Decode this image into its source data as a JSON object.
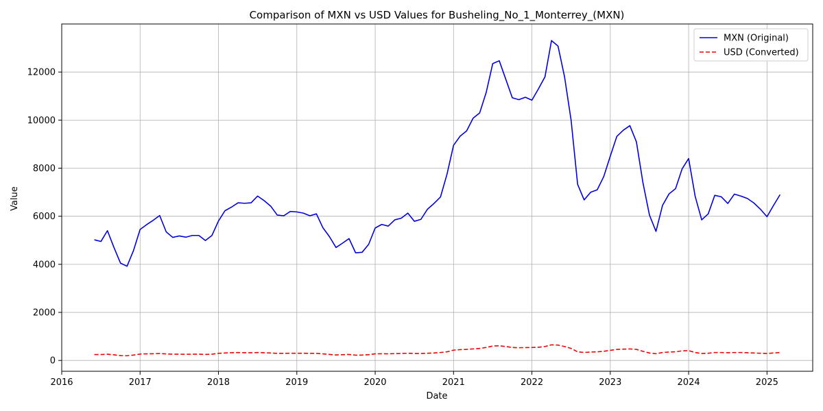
{
  "chart_data": {
    "type": "line",
    "title": "Comparison of MXN vs USD Values for Busheling_No_1_Monterrey_(MXN)",
    "xlabel": "Date",
    "ylabel": "Value",
    "xlim": [
      "2016-01-01",
      "2025-08-01"
    ],
    "ylim": [
      -450,
      14000
    ],
    "x_ticks": [
      "2016",
      "2017",
      "2018",
      "2019",
      "2020",
      "2021",
      "2022",
      "2023",
      "2024",
      "2025"
    ],
    "y_ticks": [
      0,
      2000,
      4000,
      6000,
      8000,
      10000,
      12000
    ],
    "grid": true,
    "legend_position": "top-right",
    "x": [
      "2016-06",
      "2016-07",
      "2016-08",
      "2016-09",
      "2016-10",
      "2016-11",
      "2016-12",
      "2017-01",
      "2017-02",
      "2017-03",
      "2017-04",
      "2017-05",
      "2017-06",
      "2017-07",
      "2017-08",
      "2017-09",
      "2017-10",
      "2017-11",
      "2017-12",
      "2018-01",
      "2018-02",
      "2018-03",
      "2018-04",
      "2018-05",
      "2018-06",
      "2018-07",
      "2018-08",
      "2018-09",
      "2018-10",
      "2018-11",
      "2018-12",
      "2019-01",
      "2019-02",
      "2019-03",
      "2019-04",
      "2019-05",
      "2019-06",
      "2019-07",
      "2019-08",
      "2019-09",
      "2019-10",
      "2019-11",
      "2019-12",
      "2020-01",
      "2020-02",
      "2020-03",
      "2020-04",
      "2020-05",
      "2020-06",
      "2020-07",
      "2020-08",
      "2020-09",
      "2020-10",
      "2020-11",
      "2020-12",
      "2021-01",
      "2021-02",
      "2021-03",
      "2021-04",
      "2021-05",
      "2021-06",
      "2021-07",
      "2021-08",
      "2021-09",
      "2021-10",
      "2021-11",
      "2021-12",
      "2022-01",
      "2022-02",
      "2022-03",
      "2022-04",
      "2022-05",
      "2022-06",
      "2022-07",
      "2022-08",
      "2022-09",
      "2022-10",
      "2022-11",
      "2022-12",
      "2023-01",
      "2023-02",
      "2023-03",
      "2023-04",
      "2023-05",
      "2023-06",
      "2023-07",
      "2023-08",
      "2023-09",
      "2023-10",
      "2023-11",
      "2023-12",
      "2024-01",
      "2024-02",
      "2024-03",
      "2024-04",
      "2024-05",
      "2024-06",
      "2024-07",
      "2024-08",
      "2024-09",
      "2024-10",
      "2024-11",
      "2024-12",
      "2025-01",
      "2025-02",
      "2025-03"
    ],
    "series": [
      {
        "name": "MXN (Original)",
        "color": "#0000dd",
        "style": "solid",
        "values": [
          5020,
          4950,
          5400,
          4700,
          4050,
          3920,
          4580,
          5450,
          5650,
          5830,
          6030,
          5350,
          5120,
          5180,
          5130,
          5200,
          5200,
          4990,
          5200,
          5800,
          6230,
          6380,
          6560,
          6540,
          6560,
          6840,
          6650,
          6420,
          6050,
          6020,
          6200,
          6180,
          6130,
          6020,
          6100,
          5520,
          5150,
          4700,
          4880,
          5070,
          4480,
          4500,
          4830,
          5510,
          5660,
          5590,
          5850,
          5920,
          6130,
          5790,
          5870,
          6290,
          6530,
          6800,
          7750,
          8950,
          9330,
          9550,
          10080,
          10300,
          11150,
          12350,
          12470,
          11700,
          10930,
          10850,
          10950,
          10830,
          11300,
          11800,
          13310,
          13080,
          11800,
          10000,
          7330,
          6680,
          7000,
          7100,
          7650,
          8500,
          9320,
          9580,
          9770,
          9100,
          7400,
          6050,
          5370,
          6450,
          6930,
          7150,
          7970,
          8400,
          6830,
          5850,
          6100,
          6870,
          6810,
          6530,
          6920,
          6840,
          6740,
          6550,
          6290,
          5980,
          6450,
          6900
        ]
      },
      {
        "name": "USD (Converted)",
        "color": "#ee0000",
        "style": "dashed",
        "values": [
          245,
          245,
          260,
          235,
          200,
          195,
          225,
          265,
          275,
          280,
          290,
          270,
          260,
          260,
          255,
          260,
          260,
          250,
          260,
          295,
          310,
          320,
          330,
          320,
          320,
          330,
          320,
          310,
          295,
          295,
          300,
          300,
          300,
          295,
          295,
          275,
          250,
          230,
          240,
          250,
          220,
          225,
          240,
          275,
          280,
          275,
          285,
          290,
          300,
          290,
          290,
          300,
          310,
          330,
          360,
          430,
          450,
          460,
          480,
          500,
          540,
          600,
          610,
          580,
          540,
          530,
          535,
          540,
          550,
          580,
          650,
          640,
          580,
          500,
          360,
          330,
          350,
          360,
          380,
          420,
          460,
          470,
          480,
          460,
          380,
          310,
          280,
          330,
          350,
          360,
          400,
          410,
          330,
          290,
          300,
          330,
          330,
          320,
          330,
          330,
          320,
          310,
          300,
          290,
          310,
          330
        ]
      }
    ]
  }
}
